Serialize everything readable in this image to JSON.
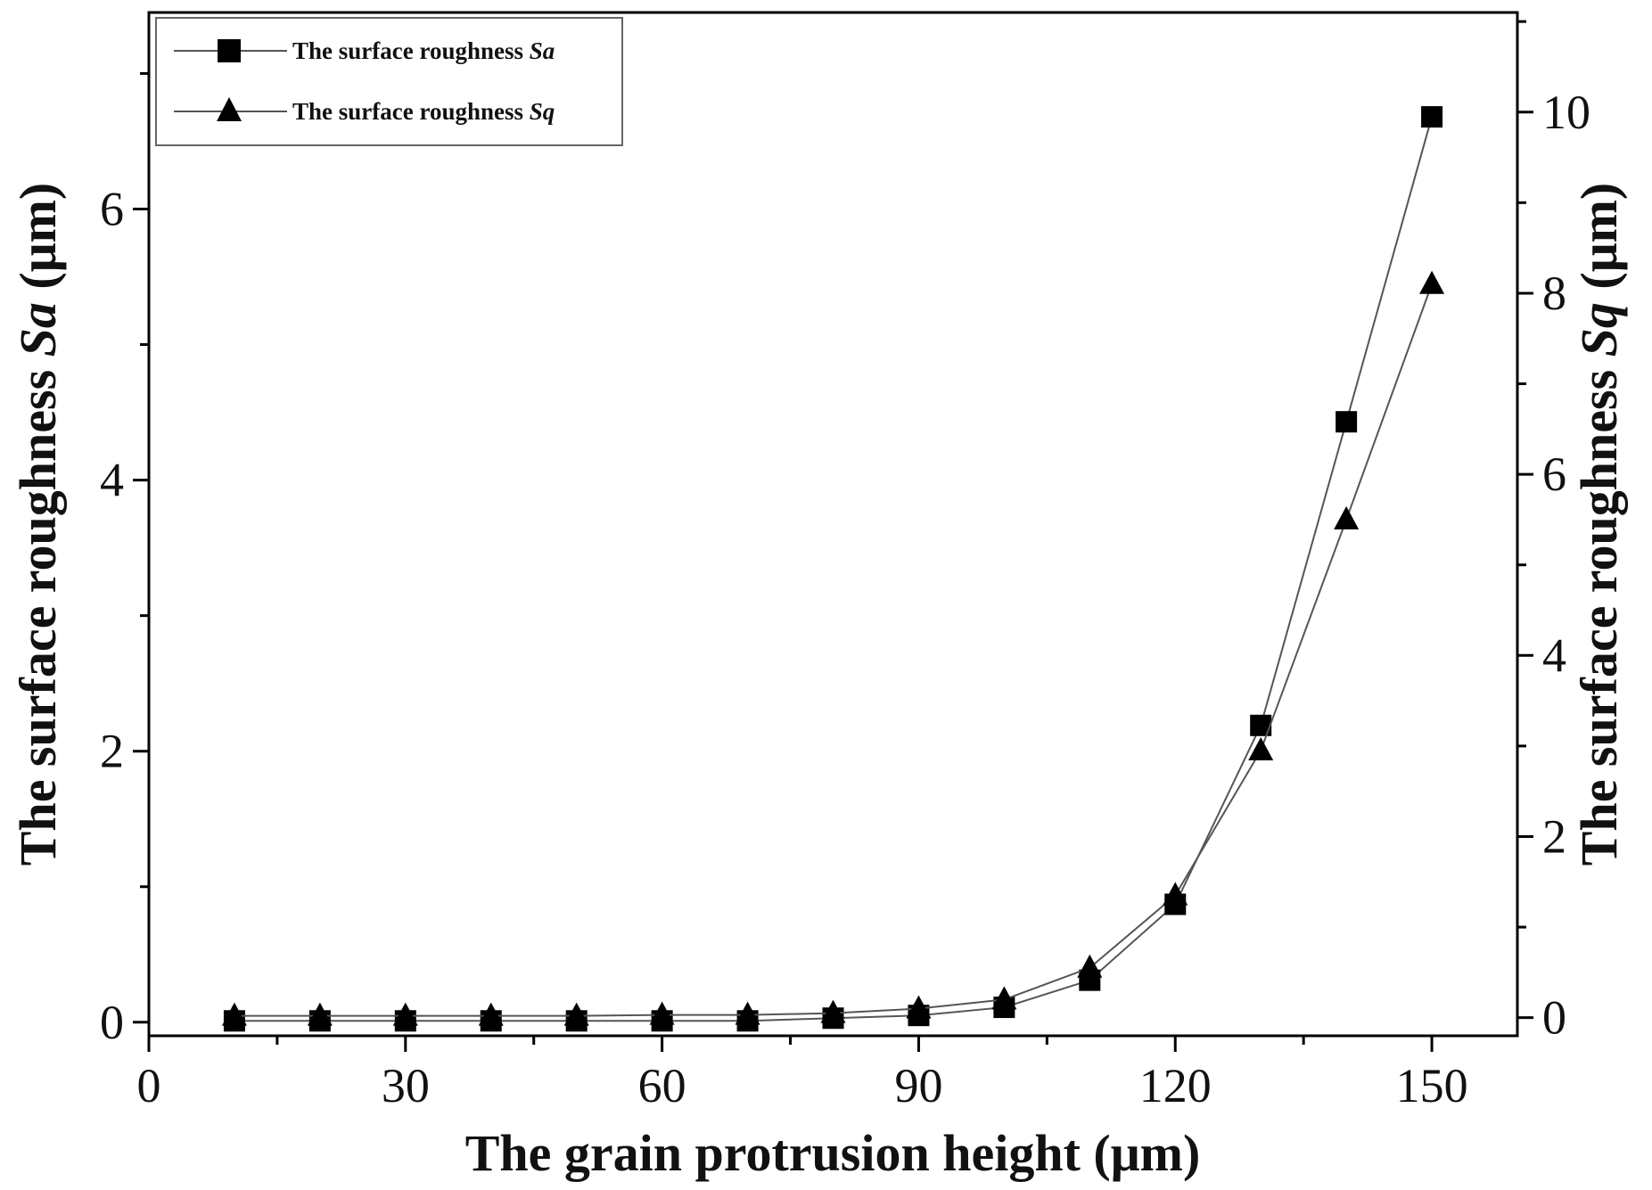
{
  "chart_data": {
    "type": "line",
    "x": [
      10,
      20,
      30,
      40,
      50,
      60,
      70,
      80,
      90,
      100,
      110,
      120,
      130,
      140,
      150
    ],
    "xlabel": "The grain protrusion height (μm)",
    "xlim": [
      0,
      160
    ],
    "xticks": [
      "0",
      "30",
      "60",
      "90",
      "120",
      "150"
    ],
    "y_left": {
      "label_prefix": "The surface roughness ",
      "label_symbol": "Sa",
      "label_suffix": " (μm)",
      "lim": [
        -0.1,
        7.45
      ],
      "ticks": [
        "0",
        "2",
        "4",
        "6"
      ]
    },
    "y_right": {
      "label_prefix": "The surface roughness ",
      "label_symbol": "Sq",
      "label_suffix": " (μm)",
      "lim": [
        -0.2,
        11.1
      ],
      "ticks": [
        "0",
        "2",
        "4",
        "6",
        "8",
        "10"
      ]
    },
    "series": [
      {
        "name_prefix": "The surface roughness ",
        "name_symbol": "Sa",
        "axis": "left",
        "marker": "square",
        "values": [
          0.01,
          0.01,
          0.01,
          0.01,
          0.01,
          0.01,
          0.01,
          0.03,
          0.05,
          0.11,
          0.31,
          0.87,
          2.19,
          4.43,
          6.68
        ]
      },
      {
        "name_prefix": "The surface roughness ",
        "name_symbol": "Sq",
        "axis": "right",
        "marker": "triangle",
        "values": [
          0.02,
          0.02,
          0.02,
          0.02,
          0.02,
          0.03,
          0.03,
          0.05,
          0.1,
          0.2,
          0.55,
          1.35,
          2.95,
          5.5,
          8.1
        ]
      }
    ],
    "legend_position": "top-left",
    "grid": false
  },
  "colors": {
    "line": "#555555",
    "marker": "#000000",
    "axis": "#000000"
  }
}
